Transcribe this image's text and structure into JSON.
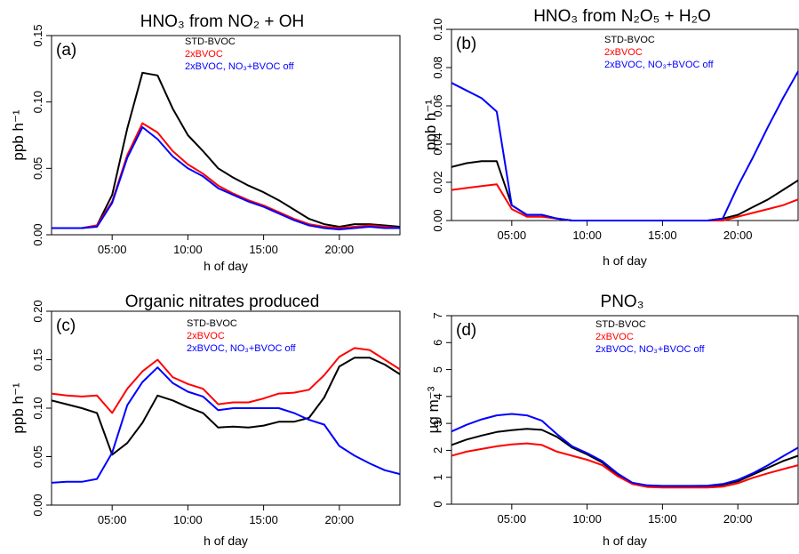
{
  "chart_data": [
    {
      "type": "line",
      "panel_label": "(a)",
      "title": "HNO₃ from NO₂ + OH",
      "xlabel": "h of day",
      "ylabel": "ppb h⁻¹",
      "xlim": [
        1,
        24
      ],
      "ylim": [
        0,
        0.15
      ],
      "xticks": [
        5,
        10,
        15,
        20
      ],
      "xtick_labels": [
        "05:00",
        "10:00",
        "15:00",
        "20:00"
      ],
      "yticks": [
        0,
        0.05,
        0.1,
        0.15
      ],
      "ytick_labels": [
        "0.00",
        "0.05",
        "0.10",
        "0.15"
      ],
      "legend_position": "top-center",
      "x": [
        1,
        2,
        3,
        4,
        5,
        6,
        7,
        8,
        9,
        10,
        11,
        12,
        13,
        14,
        15,
        16,
        17,
        18,
        19,
        20,
        21,
        22,
        23,
        24
      ],
      "series": [
        {
          "name": "STD-BVOC",
          "color": "#000000",
          "values": [
            0.005,
            0.005,
            0.005,
            0.007,
            0.03,
            0.08,
            0.122,
            0.12,
            0.095,
            0.075,
            0.063,
            0.05,
            0.043,
            0.037,
            0.032,
            0.026,
            0.019,
            0.012,
            0.008,
            0.006,
            0.008,
            0.008,
            0.007,
            0.006
          ]
        },
        {
          "name": "2xBVOC",
          "color": "#ff0000",
          "values": [
            0.005,
            0.005,
            0.005,
            0.007,
            0.025,
            0.06,
            0.084,
            0.077,
            0.063,
            0.053,
            0.046,
            0.037,
            0.031,
            0.026,
            0.022,
            0.017,
            0.012,
            0.008,
            0.006,
            0.005,
            0.006,
            0.007,
            0.006,
            0.005
          ]
        },
        {
          "name": "2xBVOC, NO₃+BVOC off",
          "color": "#0000ff",
          "values": [
            0.005,
            0.005,
            0.005,
            0.006,
            0.024,
            0.058,
            0.081,
            0.072,
            0.059,
            0.05,
            0.044,
            0.035,
            0.03,
            0.025,
            0.021,
            0.016,
            0.011,
            0.007,
            0.005,
            0.004,
            0.005,
            0.006,
            0.005,
            0.005
          ]
        }
      ]
    },
    {
      "type": "line",
      "panel_label": "(b)",
      "title": "HNO₃ from N₂O₅ + H₂O",
      "xlabel": "h of day",
      "ylabel": "ppb h⁻¹",
      "xlim": [
        1,
        24
      ],
      "ylim": [
        0,
        0.1
      ],
      "xticks": [
        5,
        10,
        15,
        20
      ],
      "xtick_labels": [
        "05:00",
        "10:00",
        "15:00",
        "20:00"
      ],
      "yticks": [
        0,
        0.02,
        0.04,
        0.06,
        0.08,
        0.1
      ],
      "ytick_labels": [
        "0.00",
        "0.02",
        "0.04",
        "0.06",
        "0.08",
        "0.10"
      ],
      "legend_position": "top-center",
      "x": [
        1,
        2,
        3,
        4,
        5,
        6,
        7,
        8,
        9,
        10,
        11,
        12,
        13,
        14,
        15,
        16,
        17,
        18,
        19,
        20,
        21,
        22,
        23,
        24
      ],
      "series": [
        {
          "name": "STD-BVOC",
          "color": "#000000",
          "values": [
            0.028,
            0.03,
            0.031,
            0.031,
            0.008,
            0.003,
            0.003,
            0.001,
            0,
            0,
            0,
            0,
            0,
            0,
            0,
            0,
            0,
            0,
            0.001,
            0.003,
            0.007,
            0.011,
            0.016,
            0.021
          ]
        },
        {
          "name": "2xBVOC",
          "color": "#ff0000",
          "values": [
            0.016,
            0.017,
            0.018,
            0.019,
            0.006,
            0.002,
            0.002,
            0.001,
            0,
            0,
            0,
            0,
            0,
            0,
            0,
            0,
            0,
            0,
            0,
            0.002,
            0.004,
            0.006,
            0.008,
            0.011
          ]
        },
        {
          "name": "2xBVOC, NO₃+BVOC off",
          "color": "#0000ff",
          "values": [
            0.072,
            0.068,
            0.064,
            0.057,
            0.008,
            0.003,
            0.003,
            0.001,
            0,
            0,
            0,
            0,
            0,
            0,
            0,
            0,
            0,
            0,
            0.001,
            0.018,
            0.033,
            0.049,
            0.064,
            0.078
          ]
        }
      ]
    },
    {
      "type": "line",
      "panel_label": "(c)",
      "title": "Organic nitrates produced",
      "xlabel": "h of day",
      "ylabel": "ppb h⁻¹",
      "xlim": [
        1,
        24
      ],
      "ylim": [
        0,
        0.2
      ],
      "xticks": [
        5,
        10,
        15,
        20
      ],
      "xtick_labels": [
        "05:00",
        "10:00",
        "15:00",
        "20:00"
      ],
      "yticks": [
        0,
        0.05,
        0.1,
        0.15,
        0.2
      ],
      "ytick_labels": [
        "0.00",
        "0.05",
        "0.10",
        "0.15",
        "0.20"
      ],
      "legend_position": "top-center",
      "x": [
        1,
        2,
        3,
        4,
        5,
        6,
        7,
        8,
        9,
        10,
        11,
        12,
        13,
        14,
        15,
        16,
        17,
        18,
        19,
        20,
        21,
        22,
        23,
        24
      ],
      "series": [
        {
          "name": "STD-BVOC",
          "color": "#000000",
          "values": [
            0.108,
            0.104,
            0.1,
            0.095,
            0.052,
            0.064,
            0.085,
            0.113,
            0.108,
            0.101,
            0.095,
            0.08,
            0.081,
            0.08,
            0.082,
            0.086,
            0.086,
            0.09,
            0.111,
            0.143,
            0.152,
            0.152,
            0.145,
            0.135
          ]
        },
        {
          "name": "2xBVOC",
          "color": "#ff0000",
          "values": [
            0.115,
            0.113,
            0.112,
            0.113,
            0.095,
            0.12,
            0.138,
            0.15,
            0.132,
            0.125,
            0.12,
            0.104,
            0.106,
            0.106,
            0.11,
            0.115,
            0.116,
            0.119,
            0.134,
            0.153,
            0.162,
            0.16,
            0.15,
            0.14
          ]
        },
        {
          "name": "2xBVOC, NO₃+BVOC off",
          "color": "#0000ff",
          "values": [
            0.023,
            0.024,
            0.024,
            0.027,
            0.054,
            0.103,
            0.127,
            0.142,
            0.126,
            0.117,
            0.112,
            0.098,
            0.1,
            0.1,
            0.1,
            0.1,
            0.095,
            0.088,
            0.083,
            0.061,
            0.051,
            0.043,
            0.036,
            0.032
          ]
        }
      ]
    },
    {
      "type": "line",
      "panel_label": "(d)",
      "title": "PNO₃",
      "xlabel": "h of day",
      "ylabel": "µg m⁻³",
      "xlim": [
        1,
        24
      ],
      "ylim": [
        0,
        7
      ],
      "xticks": [
        5,
        10,
        15,
        20
      ],
      "xtick_labels": [
        "05:00",
        "10:00",
        "15:00",
        "20:00"
      ],
      "yticks": [
        0,
        1,
        2,
        3,
        4,
        5,
        6,
        7
      ],
      "ytick_labels": [
        "0",
        "1",
        "2",
        "3",
        "4",
        "5",
        "6",
        "7"
      ],
      "legend_position": "top-center",
      "x": [
        1,
        2,
        3,
        4,
        5,
        6,
        7,
        8,
        9,
        10,
        11,
        12,
        13,
        14,
        15,
        16,
        17,
        18,
        19,
        20,
        21,
        22,
        23,
        24
      ],
      "series": [
        {
          "name": "STD-BVOC",
          "color": "#000000",
          "values": [
            2.2,
            2.4,
            2.55,
            2.68,
            2.75,
            2.8,
            2.76,
            2.5,
            2.1,
            1.85,
            1.55,
            1.1,
            0.78,
            0.68,
            0.66,
            0.66,
            0.66,
            0.67,
            0.72,
            0.85,
            1.1,
            1.35,
            1.6,
            1.8
          ]
        },
        {
          "name": "2xBVOC",
          "color": "#ff0000",
          "values": [
            1.8,
            1.95,
            2.05,
            2.15,
            2.22,
            2.26,
            2.2,
            1.95,
            1.8,
            1.65,
            1.45,
            1.05,
            0.75,
            0.64,
            0.62,
            0.62,
            0.62,
            0.62,
            0.65,
            0.78,
            0.98,
            1.15,
            1.3,
            1.45
          ]
        },
        {
          "name": "2xBVOC, NO₃+BVOC off",
          "color": "#0000ff",
          "values": [
            2.7,
            2.95,
            3.15,
            3.3,
            3.35,
            3.3,
            3.1,
            2.6,
            2.15,
            1.9,
            1.6,
            1.15,
            0.8,
            0.7,
            0.68,
            0.68,
            0.68,
            0.69,
            0.75,
            0.9,
            1.15,
            1.45,
            1.78,
            2.1
          ]
        }
      ]
    }
  ]
}
